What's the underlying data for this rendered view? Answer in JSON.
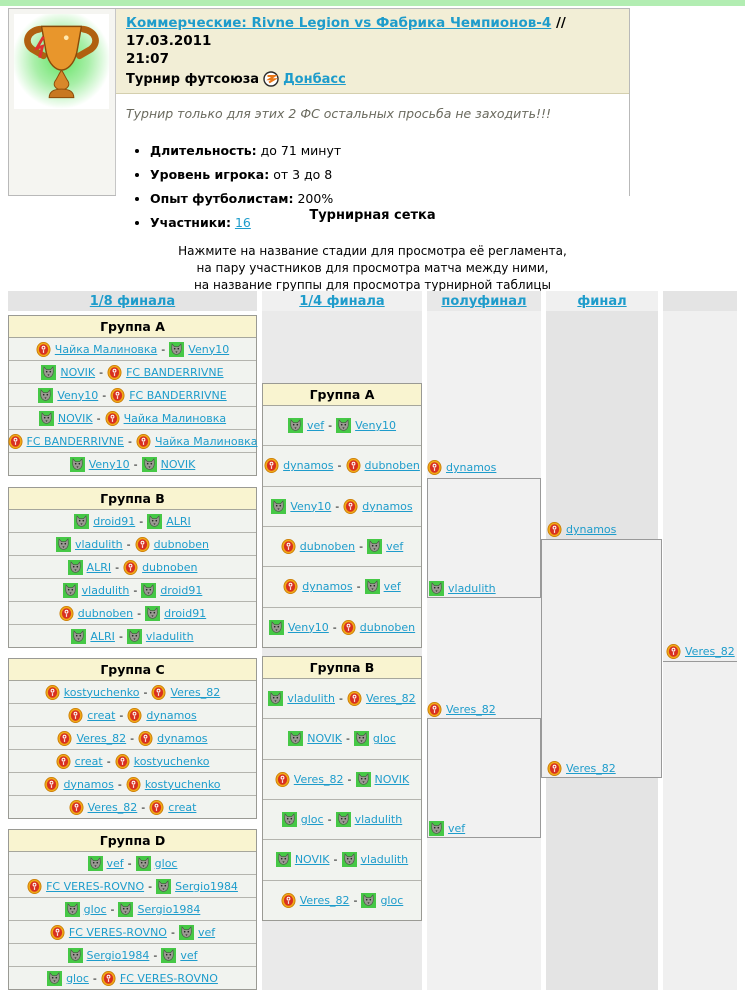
{
  "header": {
    "title_link": "Коммерческие: Rivne Legion vs Фабрика Чемпионов-4",
    "title_date": "// 17.03.2011",
    "title_time": "21:07",
    "subtitle_prefix": "Турнир футсоюза",
    "federation_link": "Донбасс",
    "note": "Турнир только для этих 2 ФС остальных просьба не заходить!!!",
    "details": [
      {
        "label": "Длительность:",
        "value": "до 71 минут",
        "is_link": false
      },
      {
        "label": "Уровень игрока:",
        "value": "от 3 до 8",
        "is_link": false
      },
      {
        "label": "Опыт футболистам:",
        "value": "200%",
        "is_link": false
      },
      {
        "label": "Участники:",
        "value": "16",
        "is_link": true
      }
    ]
  },
  "section_title": "Турнирная сетка",
  "instructions": [
    "Нажмите на название стадии для просмотра её регламента,",
    "на пару участников для просмотра матча между ними,",
    "на название группы для просмотра турнирной таблицы"
  ],
  "bracket": {
    "separator": "-",
    "stages": [
      "1/8 финала",
      "1/4 финала",
      "полуфинал",
      "финал"
    ],
    "r16_groups": [
      {
        "name": "Группа A",
        "matches": [
          {
            "home": {
              "name": "Чайка Малиновка",
              "icon": "shield"
            },
            "away": {
              "name": "Veny10",
              "icon": "wolf"
            }
          },
          {
            "home": {
              "name": "NOVIK",
              "icon": "wolf"
            },
            "away": {
              "name": "FC BANDERRIVNE",
              "icon": "shield"
            }
          },
          {
            "home": {
              "name": "Veny10",
              "icon": "wolf"
            },
            "away": {
              "name": "FC BANDERRIVNE",
              "icon": "shield"
            }
          },
          {
            "home": {
              "name": "NOVIK",
              "icon": "wolf"
            },
            "away": {
              "name": "Чайка Малиновка",
              "icon": "shield"
            }
          },
          {
            "home": {
              "name": "FC BANDERRIVNE",
              "icon": "shield"
            },
            "away": {
              "name": "Чайка Малиновка",
              "icon": "shield"
            }
          },
          {
            "home": {
              "name": "Veny10",
              "icon": "wolf"
            },
            "away": {
              "name": "NOVIK",
              "icon": "wolf"
            }
          }
        ]
      },
      {
        "name": "Группа B",
        "matches": [
          {
            "home": {
              "name": "droid91",
              "icon": "wolf"
            },
            "away": {
              "name": "ALRI",
              "icon": "wolf"
            }
          },
          {
            "home": {
              "name": "vladulith",
              "icon": "wolf"
            },
            "away": {
              "name": "dubnoben",
              "icon": "shield"
            }
          },
          {
            "home": {
              "name": "ALRI",
              "icon": "wolf"
            },
            "away": {
              "name": "dubnoben",
              "icon": "shield"
            }
          },
          {
            "home": {
              "name": "vladulith",
              "icon": "wolf"
            },
            "away": {
              "name": "droid91",
              "icon": "wolf"
            }
          },
          {
            "home": {
              "name": "dubnoben",
              "icon": "shield"
            },
            "away": {
              "name": "droid91",
              "icon": "wolf"
            }
          },
          {
            "home": {
              "name": "ALRI",
              "icon": "wolf"
            },
            "away": {
              "name": "vladulith",
              "icon": "wolf"
            }
          }
        ]
      },
      {
        "name": "Группа C",
        "matches": [
          {
            "home": {
              "name": "kostyuchenko",
              "icon": "shield"
            },
            "away": {
              "name": "Veres_82",
              "icon": "shield"
            }
          },
          {
            "home": {
              "name": "creat",
              "icon": "shield"
            },
            "away": {
              "name": "dynamos",
              "icon": "shield"
            }
          },
          {
            "home": {
              "name": "Veres_82",
              "icon": "shield"
            },
            "away": {
              "name": "dynamos",
              "icon": "shield"
            }
          },
          {
            "home": {
              "name": "creat",
              "icon": "shield"
            },
            "away": {
              "name": "kostyuchenko",
              "icon": "shield"
            }
          },
          {
            "home": {
              "name": "dynamos",
              "icon": "shield"
            },
            "away": {
              "name": "kostyuchenko",
              "icon": "shield"
            }
          },
          {
            "home": {
              "name": "Veres_82",
              "icon": "shield"
            },
            "away": {
              "name": "creat",
              "icon": "shield"
            }
          }
        ]
      },
      {
        "name": "Группа D",
        "matches": [
          {
            "home": {
              "name": "vef",
              "icon": "wolf"
            },
            "away": {
              "name": "gloc",
              "icon": "wolf"
            }
          },
          {
            "home": {
              "name": "FC VERES-ROVNO",
              "icon": "shield"
            },
            "away": {
              "name": "Sergio1984",
              "icon": "wolf"
            }
          },
          {
            "home": {
              "name": "gloc",
              "icon": "wolf"
            },
            "away": {
              "name": "Sergio1984",
              "icon": "wolf"
            }
          },
          {
            "home": {
              "name": "FC VERES-ROVNO",
              "icon": "shield"
            },
            "away": {
              "name": "vef",
              "icon": "wolf"
            }
          },
          {
            "home": {
              "name": "Sergio1984",
              "icon": "wolf"
            },
            "away": {
              "name": "vef",
              "icon": "wolf"
            }
          },
          {
            "home": {
              "name": "gloc",
              "icon": "wolf"
            },
            "away": {
              "name": "FC VERES-ROVNO",
              "icon": "shield"
            }
          }
        ]
      }
    ],
    "qf_groups": [
      {
        "name": "Группа A",
        "matches": [
          {
            "home": {
              "name": "vef",
              "icon": "wolf"
            },
            "away": {
              "name": "Veny10",
              "icon": "wolf"
            }
          },
          {
            "home": {
              "name": "dynamos",
              "icon": "shield"
            },
            "away": {
              "name": "dubnoben",
              "icon": "shield"
            }
          },
          {
            "home": {
              "name": "Veny10",
              "icon": "wolf"
            },
            "away": {
              "name": "dynamos",
              "icon": "shield"
            }
          },
          {
            "home": {
              "name": "dubnoben",
              "icon": "shield"
            },
            "away": {
              "name": "vef",
              "icon": "wolf"
            }
          },
          {
            "home": {
              "name": "dynamos",
              "icon": "shield"
            },
            "away": {
              "name": "vef",
              "icon": "wolf"
            }
          },
          {
            "home": {
              "name": "Veny10",
              "icon": "wolf"
            },
            "away": {
              "name": "dubnoben",
              "icon": "shield"
            }
          }
        ]
      },
      {
        "name": "Группа B",
        "matches": [
          {
            "home": {
              "name": "vladulith",
              "icon": "wolf"
            },
            "away": {
              "name": "Veres_82",
              "icon": "shield"
            }
          },
          {
            "home": {
              "name": "NOVIK",
              "icon": "wolf"
            },
            "away": {
              "name": "gloc",
              "icon": "wolf"
            }
          },
          {
            "home": {
              "name": "Veres_82",
              "icon": "shield"
            },
            "away": {
              "name": "NOVIK",
              "icon": "wolf"
            }
          },
          {
            "home": {
              "name": "gloc",
              "icon": "wolf"
            },
            "away": {
              "name": "vladulith",
              "icon": "wolf"
            }
          },
          {
            "home": {
              "name": "NOVIK",
              "icon": "wolf"
            },
            "away": {
              "name": "vladulith",
              "icon": "wolf"
            }
          },
          {
            "home": {
              "name": "Veres_82",
              "icon": "shield"
            },
            "away": {
              "name": "gloc",
              "icon": "wolf"
            }
          }
        ]
      }
    ],
    "semifinal_entries": [
      {
        "name": "dynamos",
        "icon": "shield"
      },
      {
        "name": "vladulith",
        "icon": "wolf"
      },
      {
        "name": "Veres_82",
        "icon": "shield"
      },
      {
        "name": "vef",
        "icon": "wolf"
      }
    ],
    "final_entries": [
      {
        "name": "dynamos",
        "icon": "shield"
      },
      {
        "name": "Veres_82",
        "icon": "shield"
      }
    ],
    "winner": {
      "name": "Veres_82",
      "icon": "shield"
    }
  },
  "colors": {
    "link": "#1e9ccb",
    "top_strip_green": "#b2edb2",
    "title_bar_cream": "#f2eed6",
    "group_header_cream": "#f9f4d0",
    "wolf_icon_green": "#46c846",
    "shield_icon_red": "#d83020",
    "shield_icon_gold": "#f0a818"
  }
}
